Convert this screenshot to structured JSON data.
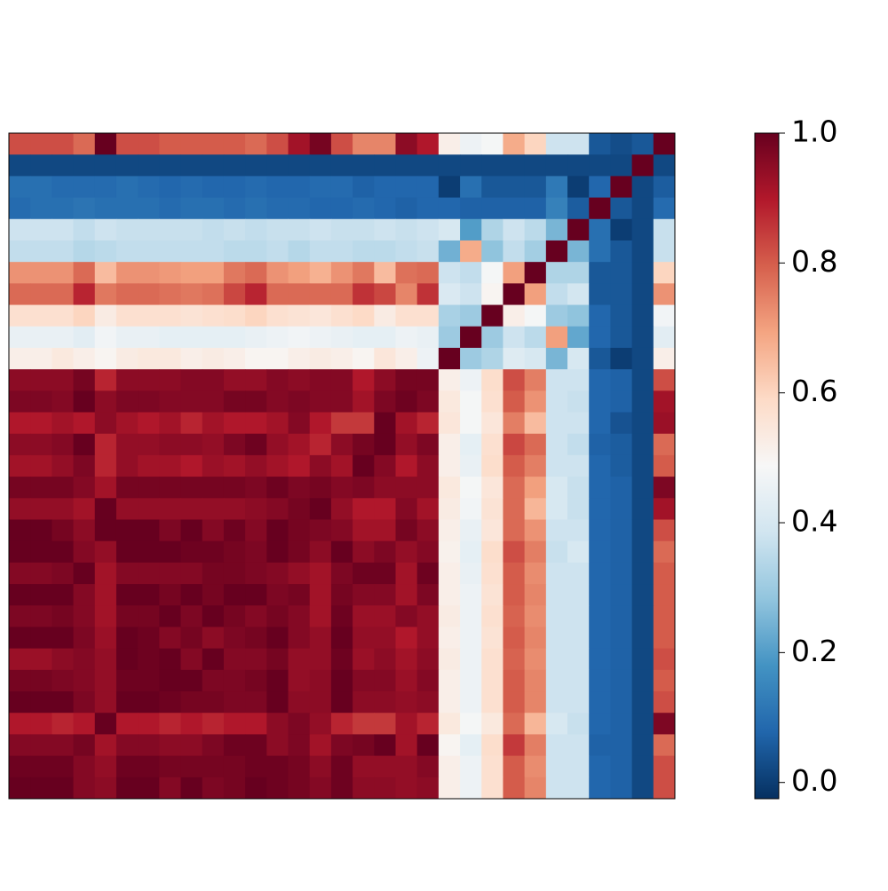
{
  "chart_data": {
    "type": "heatmap",
    "values": [
      [
        0.82,
        0.82,
        0.82,
        0.78,
        1.0,
        0.82,
        0.82,
        0.8,
        0.8,
        0.8,
        0.8,
        0.78,
        0.82,
        0.92,
        0.98,
        0.82,
        0.74,
        0.74,
        0.95,
        0.9,
        0.52,
        0.46,
        0.48,
        0.68,
        0.6,
        0.38,
        0.38,
        0.05,
        0.03,
        0.05,
        1.0
      ],
      [
        0.02,
        0.02,
        0.02,
        0.02,
        0.02,
        0.02,
        0.02,
        0.02,
        0.02,
        0.02,
        0.02,
        0.02,
        0.02,
        0.02,
        0.02,
        0.02,
        0.02,
        0.02,
        0.02,
        0.02,
        0.02,
        0.02,
        0.02,
        0.02,
        0.02,
        0.02,
        0.02,
        0.02,
        0.02,
        1.0,
        0.02
      ],
      [
        0.1,
        0.1,
        0.09,
        0.09,
        0.09,
        0.1,
        0.09,
        0.08,
        0.09,
        0.08,
        0.08,
        0.09,
        0.08,
        0.08,
        0.09,
        0.09,
        0.07,
        0.08,
        0.08,
        0.08,
        0.0,
        0.1,
        0.05,
        0.05,
        0.05,
        0.12,
        0.0,
        0.08,
        1.0,
        0.02,
        0.06
      ],
      [
        0.09,
        0.1,
        0.1,
        0.11,
        0.1,
        0.1,
        0.1,
        0.09,
        0.1,
        0.1,
        0.09,
        0.1,
        0.09,
        0.09,
        0.08,
        0.08,
        0.09,
        0.08,
        0.07,
        0.08,
        0.08,
        0.07,
        0.07,
        0.07,
        0.07,
        0.14,
        0.06,
        1.0,
        0.05,
        0.02,
        0.09
      ],
      [
        0.38,
        0.38,
        0.38,
        0.36,
        0.38,
        0.37,
        0.37,
        0.37,
        0.37,
        0.36,
        0.37,
        0.36,
        0.37,
        0.37,
        0.38,
        0.37,
        0.37,
        0.38,
        0.37,
        0.38,
        0.4,
        0.2,
        0.33,
        0.38,
        0.35,
        0.25,
        1.0,
        0.1,
        0.0,
        0.02,
        0.37
      ],
      [
        0.36,
        0.36,
        0.36,
        0.34,
        0.35,
        0.36,
        0.36,
        0.36,
        0.36,
        0.36,
        0.35,
        0.35,
        0.36,
        0.34,
        0.36,
        0.36,
        0.35,
        0.35,
        0.36,
        0.37,
        0.24,
        0.68,
        0.28,
        0.36,
        0.31,
        1.0,
        0.25,
        0.1,
        0.05,
        0.02,
        0.37
      ],
      [
        0.72,
        0.72,
        0.72,
        0.78,
        0.65,
        0.72,
        0.72,
        0.71,
        0.7,
        0.7,
        0.76,
        0.78,
        0.72,
        0.7,
        0.67,
        0.72,
        0.76,
        0.65,
        0.77,
        0.78,
        0.38,
        0.36,
        0.48,
        0.7,
        1.0,
        0.33,
        0.33,
        0.05,
        0.05,
        0.02,
        0.6
      ],
      [
        0.78,
        0.78,
        0.78,
        0.88,
        0.76,
        0.78,
        0.78,
        0.77,
        0.76,
        0.77,
        0.83,
        0.88,
        0.78,
        0.78,
        0.78,
        0.78,
        0.86,
        0.83,
        0.74,
        0.86,
        0.41,
        0.38,
        0.5,
        1.0,
        0.7,
        0.36,
        0.39,
        0.05,
        0.05,
        0.02,
        0.72
      ],
      [
        0.57,
        0.57,
        0.57,
        0.6,
        0.53,
        0.57,
        0.57,
        0.57,
        0.56,
        0.57,
        0.58,
        0.6,
        0.57,
        0.56,
        0.55,
        0.57,
        0.59,
        0.53,
        0.57,
        0.57,
        0.32,
        0.3,
        1.0,
        0.52,
        0.48,
        0.3,
        0.28,
        0.08,
        0.05,
        0.02,
        0.47
      ],
      [
        0.45,
        0.45,
        0.45,
        0.43,
        0.47,
        0.45,
        0.45,
        0.44,
        0.44,
        0.44,
        0.44,
        0.45,
        0.46,
        0.47,
        0.46,
        0.45,
        0.44,
        0.44,
        0.46,
        0.45,
        0.3,
        1.0,
        0.3,
        0.38,
        0.35,
        0.7,
        0.22,
        0.08,
        0.05,
        0.02,
        0.43
      ],
      [
        0.52,
        0.52,
        0.54,
        0.52,
        0.5,
        0.53,
        0.54,
        0.54,
        0.52,
        0.53,
        0.52,
        0.5,
        0.5,
        0.52,
        0.53,
        0.52,
        0.5,
        0.55,
        0.52,
        0.46,
        1.0,
        0.3,
        0.33,
        0.42,
        0.4,
        0.25,
        0.4,
        0.05,
        0.0,
        0.02,
        0.52
      ],
      [
        0.95,
        0.95,
        0.95,
        0.98,
        0.88,
        0.95,
        0.95,
        0.95,
        0.96,
        0.96,
        0.94,
        0.94,
        0.96,
        0.95,
        0.96,
        0.96,
        0.9,
        0.95,
        0.98,
        0.98,
        0.52,
        0.46,
        0.58,
        0.82,
        0.75,
        0.38,
        0.38,
        0.08,
        0.07,
        0.02,
        0.82
      ],
      [
        0.97,
        0.97,
        0.96,
        1.0,
        0.95,
        0.97,
        0.97,
        0.96,
        0.96,
        0.96,
        0.98,
        0.98,
        0.96,
        0.97,
        0.96,
        0.96,
        0.92,
        0.97,
        0.99,
        0.97,
        0.54,
        0.48,
        0.57,
        0.8,
        0.72,
        0.38,
        0.37,
        0.08,
        0.07,
        0.02,
        0.92
      ],
      [
        0.9,
        0.9,
        0.92,
        0.9,
        0.95,
        0.92,
        0.9,
        0.92,
        0.88,
        0.92,
        0.9,
        0.9,
        0.92,
        0.96,
        0.9,
        0.85,
        0.85,
        1.0,
        0.92,
        0.88,
        0.55,
        0.48,
        0.55,
        0.75,
        0.65,
        0.38,
        0.38,
        0.08,
        0.04,
        0.02,
        0.93
      ],
      [
        0.95,
        0.95,
        0.96,
        1.0,
        0.88,
        0.94,
        0.94,
        0.95,
        0.95,
        0.94,
        0.97,
        0.99,
        0.94,
        0.92,
        0.88,
        0.95,
        0.98,
        1.0,
        0.94,
        0.97,
        0.52,
        0.44,
        0.57,
        0.83,
        0.78,
        0.38,
        0.36,
        0.07,
        0.06,
        0.02,
        0.78
      ],
      [
        0.92,
        0.92,
        0.94,
        0.97,
        0.88,
        0.94,
        0.92,
        0.92,
        0.9,
        0.93,
        0.92,
        0.94,
        0.92,
        0.9,
        0.95,
        0.92,
        1.0,
        0.96,
        0.9,
        0.95,
        0.52,
        0.45,
        0.58,
        0.8,
        0.75,
        0.38,
        0.38,
        0.08,
        0.06,
        0.02,
        0.8
      ],
      [
        0.98,
        0.98,
        0.98,
        0.96,
        0.92,
        0.98,
        0.98,
        0.98,
        0.98,
        0.98,
        0.98,
        0.97,
        0.99,
        0.97,
        0.98,
        0.96,
        0.97,
        0.95,
        0.95,
        0.95,
        0.54,
        0.48,
        0.55,
        0.78,
        0.7,
        0.4,
        0.37,
        0.08,
        0.07,
        0.02,
        0.97
      ],
      [
        0.94,
        0.94,
        0.94,
        0.92,
        1.0,
        0.94,
        0.94,
        0.94,
        0.94,
        0.94,
        0.94,
        0.95,
        0.96,
        0.98,
        1.0,
        0.94,
        0.9,
        0.9,
        0.96,
        0.92,
        0.53,
        0.47,
        0.56,
        0.78,
        0.66,
        0.4,
        0.37,
        0.08,
        0.07,
        0.02,
        0.92
      ],
      [
        1.0,
        1.0,
        0.98,
        0.95,
        1.0,
        1.0,
        1.0,
        0.97,
        1.0,
        0.96,
        0.99,
        0.96,
        1.0,
        0.98,
        0.97,
        0.96,
        0.92,
        0.92,
        0.98,
        0.95,
        0.52,
        0.45,
        0.55,
        0.78,
        0.72,
        0.38,
        0.38,
        0.08,
        0.07,
        0.02,
        0.82
      ],
      [
        1.0,
        1.0,
        1.0,
        0.96,
        0.94,
        1.0,
        1.0,
        1.0,
        0.99,
        0.99,
        0.98,
        0.97,
        1.0,
        0.98,
        0.95,
        1.0,
        0.95,
        0.97,
        0.94,
        0.96,
        0.51,
        0.44,
        0.58,
        0.82,
        0.75,
        0.37,
        0.4,
        0.08,
        0.07,
        0.02,
        0.78
      ],
      [
        0.96,
        0.96,
        0.97,
        1.0,
        0.92,
        0.96,
        0.96,
        0.96,
        0.96,
        0.98,
        0.98,
        0.97,
        0.96,
        0.94,
        0.92,
        0.97,
        0.99,
        0.99,
        0.92,
        0.99,
        0.52,
        0.45,
        0.57,
        0.8,
        0.73,
        0.38,
        0.38,
        0.08,
        0.07,
        0.02,
        0.8
      ],
      [
        1.0,
        1.0,
        1.0,
        0.96,
        0.92,
        1.0,
        1.0,
        0.98,
        1.0,
        0.98,
        1.0,
        1.0,
        0.97,
        0.98,
        0.92,
        0.98,
        0.96,
        0.96,
        0.92,
        0.97,
        0.52,
        0.46,
        0.56,
        0.8,
        0.74,
        0.38,
        0.38,
        0.08,
        0.07,
        0.02,
        0.8
      ],
      [
        0.97,
        0.97,
        0.98,
        0.96,
        0.92,
        0.98,
        0.98,
        1.0,
        0.97,
        1.0,
        0.98,
        0.96,
        0.98,
        0.96,
        0.92,
        0.99,
        0.93,
        0.93,
        0.96,
        0.94,
        0.53,
        0.46,
        0.57,
        0.79,
        0.73,
        0.38,
        0.38,
        0.08,
        0.07,
        0.02,
        0.8
      ],
      [
        1.0,
        1.0,
        1.0,
        0.97,
        0.93,
        1.0,
        0.99,
        0.96,
        0.98,
        0.95,
        0.97,
        0.98,
        1.0,
        0.96,
        0.94,
        1.0,
        0.94,
        0.94,
        0.9,
        0.94,
        0.52,
        0.46,
        0.56,
        0.8,
        0.74,
        0.38,
        0.38,
        0.08,
        0.07,
        0.02,
        0.8
      ],
      [
        0.93,
        0.93,
        0.95,
        0.96,
        0.94,
        1.0,
        0.99,
        1.0,
        0.96,
        1.0,
        0.96,
        0.96,
        0.98,
        0.94,
        0.94,
        0.99,
        0.93,
        0.95,
        0.92,
        0.95,
        0.53,
        0.46,
        0.57,
        0.79,
        0.73,
        0.38,
        0.38,
        0.08,
        0.07,
        0.02,
        0.82
      ],
      [
        0.98,
        0.98,
        0.97,
        0.96,
        0.94,
        0.99,
        0.99,
        1.0,
        1.0,
        0.97,
        0.97,
        0.98,
        1.0,
        0.94,
        0.95,
        1.0,
        0.96,
        0.96,
        0.93,
        0.96,
        0.52,
        0.46,
        0.57,
        0.8,
        0.74,
        0.38,
        0.38,
        0.08,
        0.07,
        0.02,
        0.8
      ],
      [
        1.0,
        1.0,
        1.0,
        0.97,
        0.94,
        1.0,
        1.0,
        0.99,
        0.98,
        0.98,
        0.97,
        0.97,
        1.0,
        0.95,
        0.95,
        1.0,
        0.95,
        0.95,
        0.94,
        0.95,
        0.52,
        0.46,
        0.57,
        0.8,
        0.74,
        0.38,
        0.38,
        0.08,
        0.07,
        0.02,
        0.82
      ],
      [
        0.9,
        0.9,
        0.88,
        0.9,
        1.0,
        0.9,
        0.9,
        0.88,
        0.9,
        0.88,
        0.9,
        0.9,
        0.95,
        0.97,
        0.94,
        0.88,
        0.85,
        0.85,
        0.92,
        0.88,
        0.54,
        0.48,
        0.54,
        0.78,
        0.66,
        0.4,
        0.37,
        0.08,
        0.07,
        0.02,
        0.97
      ],
      [
        0.96,
        0.96,
        0.96,
        0.98,
        0.92,
        0.96,
        0.96,
        0.95,
        0.95,
        0.97,
        0.99,
        0.99,
        0.95,
        0.97,
        0.92,
        0.97,
        0.98,
        1.0,
        0.92,
        1.0,
        0.5,
        0.44,
        0.58,
        0.85,
        0.75,
        0.38,
        0.38,
        0.07,
        0.07,
        0.02,
        0.78
      ],
      [
        0.99,
        0.99,
        0.99,
        0.96,
        0.94,
        0.99,
        0.99,
        0.98,
        0.98,
        0.98,
        0.98,
        0.99,
        0.99,
        0.98,
        0.95,
        0.99,
        0.94,
        0.94,
        0.94,
        0.96,
        0.52,
        0.46,
        0.57,
        0.8,
        0.73,
        0.38,
        0.38,
        0.08,
        0.07,
        0.02,
        0.82
      ],
      [
        1.0,
        1.0,
        1.0,
        0.96,
        0.95,
        1.0,
        1.0,
        0.96,
        1.0,
        0.97,
        0.98,
        1.0,
        0.99,
        0.98,
        0.96,
        0.99,
        0.95,
        0.95,
        0.94,
        0.95,
        0.52,
        0.46,
        0.57,
        0.8,
        0.74,
        0.38,
        0.38,
        0.08,
        0.07,
        0.02,
        0.82
      ]
    ],
    "colormap": [
      "#053061",
      "#2166ac",
      "#4393c3",
      "#92c5de",
      "#d1e5f0",
      "#f7f7f7",
      "#fddbc7",
      "#f4a582",
      "#d6604d",
      "#b2182b",
      "#67001f"
    ],
    "colorbar": {
      "ylim": [
        -0.025,
        1.0
      ],
      "yticks": [
        {
          "value": 0,
          "label": "0.0"
        },
        0.2,
        0.4,
        0.6,
        0.8,
        {
          "value": 1,
          "label": "1.0"
        }
      ]
    }
  }
}
